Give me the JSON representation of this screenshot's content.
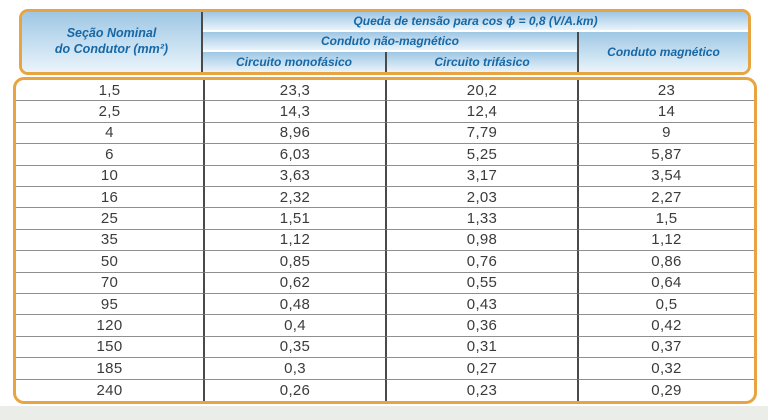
{
  "colors": {
    "orange": "#E8A441",
    "hdr_text": "#1668A7",
    "grad_top": "#9EC7E4",
    "grad_bottom": "#EAF4FB",
    "divider": "#4A4A4A",
    "rowline": "#8F8F8F",
    "datatext": "#3B3B3B",
    "strip": "#EBEDE8"
  },
  "header": {
    "conductor_line1": "Seção Nominal",
    "conductor_line2": "do Condutor (mm²)",
    "title": "Queda de tensão para cos ϕ = 0,8 (V/A.km)",
    "group_non_magnetic": "Conduto não-magnético",
    "group_magnetic": "Conduto magnético",
    "sub_single_phase": "Circuito monofásico",
    "sub_three_phase": "Circuito trifásico"
  },
  "rows": [
    [
      "1,5",
      "23,3",
      "20,2",
      "23"
    ],
    [
      "2,5",
      "14,3",
      "12,4",
      "14"
    ],
    [
      "4",
      "8,96",
      "7,79",
      "9"
    ],
    [
      "6",
      "6,03",
      "5,25",
      "5,87"
    ],
    [
      "10",
      "3,63",
      "3,17",
      "3,54"
    ],
    [
      "16",
      "2,32",
      "2,03",
      "2,27"
    ],
    [
      "25",
      "1,51",
      "1,33",
      "1,5"
    ],
    [
      "35",
      "1,12",
      "0,98",
      "1,12"
    ],
    [
      "50",
      "0,85",
      "0,76",
      "0,86"
    ],
    [
      "70",
      "0,62",
      "0,55",
      "0,64"
    ],
    [
      "95",
      "0,48",
      "0,43",
      "0,5"
    ],
    [
      "120",
      "0,4",
      "0,36",
      "0,42"
    ],
    [
      "150",
      "0,35",
      "0,31",
      "0,37"
    ],
    [
      "185",
      "0,3",
      "0,27",
      "0,32"
    ],
    [
      "240",
      "0,26",
      "0,23",
      "0,29"
    ]
  ]
}
